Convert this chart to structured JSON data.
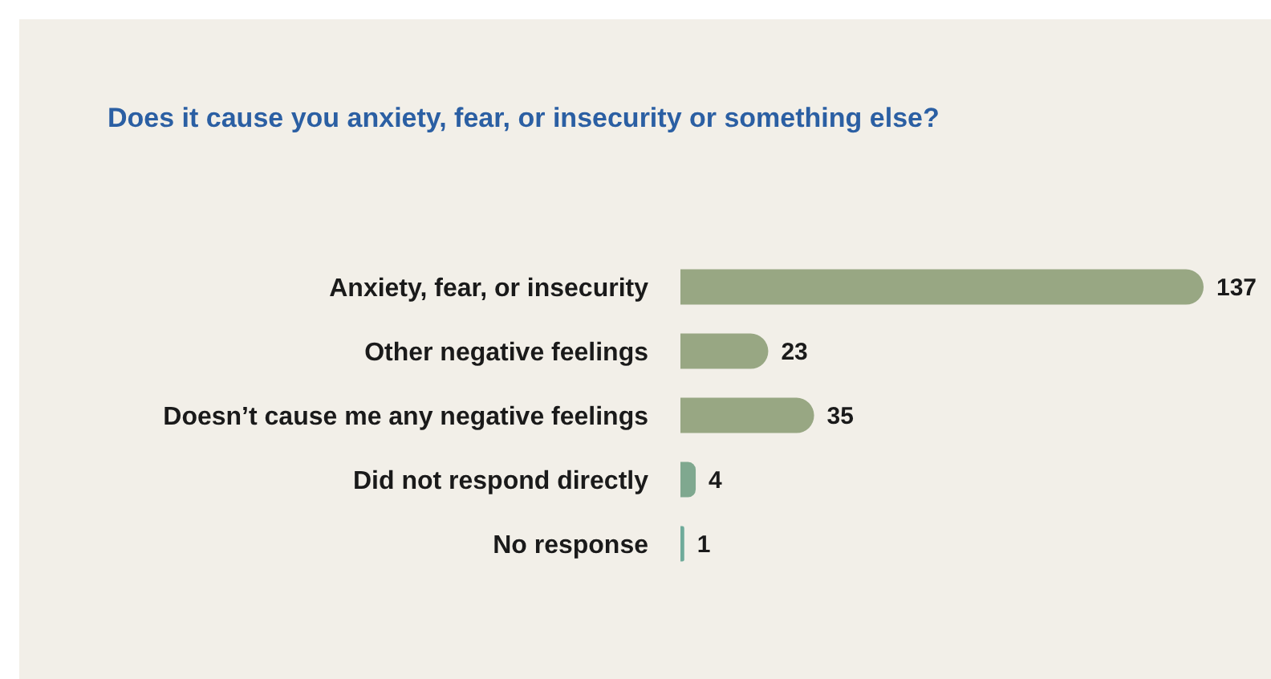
{
  "chart_data": {
    "type": "bar",
    "orientation": "horizontal",
    "title": "Does it cause you anxiety, fear, or insecurity or something else?",
    "categories": [
      "Anxiety, fear, or insecurity",
      "Other negative feelings",
      "Doesn’t cause me any negative feelings",
      "Did not respond directly",
      "No response"
    ],
    "values": [
      137,
      23,
      35,
      4,
      1
    ],
    "colors": [
      "#98a783",
      "#98a783",
      "#98a783",
      "#7fa88f",
      "#6fab9a"
    ],
    "data_labels": true,
    "grid": false,
    "legend": false
  }
}
